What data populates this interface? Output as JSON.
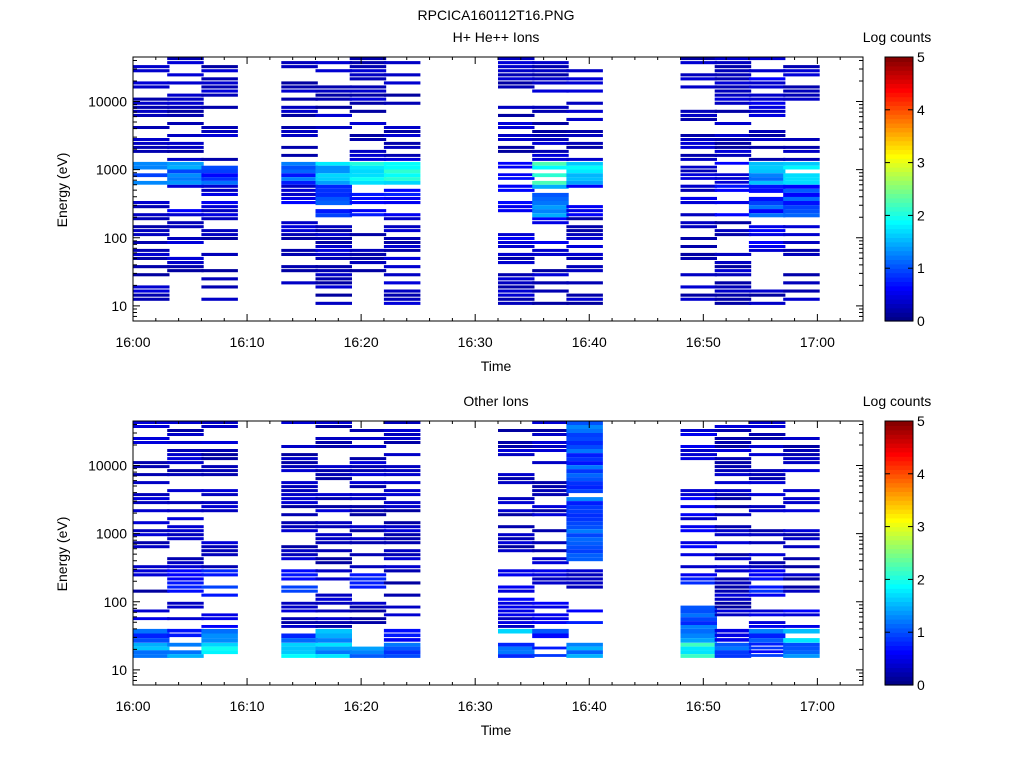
{
  "page_title": "RPCICA160112T16.PNG",
  "chart_data": [
    {
      "type": "heatmap",
      "title": "H+ He++ Ions",
      "xlabel": "Time",
      "ylabel": "Energy (eV)",
      "yscale": "log",
      "ylim": [
        6,
        45000
      ],
      "xlim_minutes": [
        0,
        64
      ],
      "x_tick_labels": [
        "16:00",
        "16:10",
        "16:20",
        "16:30",
        "16:40",
        "16:50",
        "17:00"
      ],
      "y_tick_labels": [
        "10",
        "100",
        "1000",
        "10000"
      ],
      "colorbar_label": "Log counts",
      "colorbar_ticks": [
        "0",
        "1",
        "2",
        "3",
        "4",
        "5"
      ],
      "colorbar_range": [
        0,
        5
      ],
      "time_columns": [
        "16:00",
        "16:03",
        "16:06",
        "16:13",
        "16:16",
        "16:19",
        "16:22",
        "16:32",
        "16:35",
        "16:38",
        "16:48",
        "16:51",
        "16:54",
        "16:57"
      ],
      "energy_bands": [
        {
          "range": "10-20 eV",
          "levels": [
            0.3,
            0,
            0.3,
            0,
            0.3,
            0,
            0.3,
            0.3,
            0.3,
            0.3,
            0.3,
            0.3,
            0.3,
            0.3
          ]
        },
        {
          "range": "20-60 eV",
          "levels": [
            0.3,
            0.3,
            0.3,
            0.3,
            0.3,
            0.3,
            0.3,
            0.3,
            0.3,
            0.3,
            0.3,
            0.3,
            0,
            0.3
          ]
        },
        {
          "range": "60-200 eV",
          "levels": [
            0.3,
            0.3,
            0.3,
            0.3,
            0.3,
            0.3,
            0.3,
            0.5,
            0.5,
            0.3,
            0.3,
            0.3,
            0.5,
            0.3
          ]
        },
        {
          "range": "200-600 eV",
          "levels": [
            0.4,
            0.5,
            0.4,
            0.5,
            0.9,
            0.6,
            0.7,
            0.6,
            1.2,
            0.5,
            0.4,
            0.6,
            0.9,
            0.9
          ]
        },
        {
          "range": "600-1300 eV",
          "levels": [
            1.0,
            1.2,
            0.9,
            1.0,
            1.6,
            1.8,
            1.9,
            0.6,
            2.0,
            1.6,
            0.4,
            0.5,
            1.4,
            1.6
          ]
        },
        {
          "range": "1300-5000 eV",
          "levels": [
            0.3,
            0.3,
            0.3,
            0.3,
            0.3,
            0.3,
            0.3,
            0.3,
            0.3,
            0.3,
            0.3,
            0.3,
            0.3,
            0.3
          ]
        },
        {
          "range": "5000-45000 eV",
          "levels": [
            0.3,
            0.3,
            0.3,
            0.3,
            0.3,
            0.3,
            0.3,
            0.3,
            0.3,
            0.3,
            0.3,
            0.3,
            0.5,
            0.3
          ]
        }
      ]
    },
    {
      "type": "heatmap",
      "title": "Other Ions",
      "xlabel": "Time",
      "ylabel": "Energy (eV)",
      "yscale": "log",
      "ylim": [
        6,
        45000
      ],
      "xlim_minutes": [
        0,
        64
      ],
      "x_tick_labels": [
        "16:00",
        "16:10",
        "16:20",
        "16:30",
        "16:40",
        "16:50",
        "17:00"
      ],
      "y_tick_labels": [
        "10",
        "100",
        "1000",
        "10000"
      ],
      "colorbar_label": "Log counts",
      "colorbar_ticks": [
        "0",
        "1",
        "2",
        "3",
        "4",
        "5"
      ],
      "colorbar_range": [
        0,
        5
      ],
      "time_columns": [
        "16:00",
        "16:03",
        "16:06",
        "16:13",
        "16:16",
        "16:19",
        "16:22",
        "16:32",
        "16:35",
        "16:38",
        "16:48",
        "16:51",
        "16:54",
        "16:57"
      ],
      "energy_bands": [
        {
          "range": "15-25 eV",
          "levels": [
            1.3,
            1.4,
            1.8,
            1.6,
            1.5,
            1.2,
            1.0,
            1.0,
            0.8,
            1.3,
            2.0,
            1.1,
            0.8,
            1.2
          ]
        },
        {
          "range": "25-40 eV",
          "levels": [
            1.0,
            0.6,
            1.2,
            1.0,
            1.5,
            0.8,
            0.6,
            1.5,
            0.9,
            0.8,
            1.4,
            0.5,
            1.0,
            1.6
          ]
        },
        {
          "range": "40-100 eV",
          "levels": [
            0.5,
            0.4,
            0.5,
            0.3,
            0.3,
            0.3,
            0.3,
            0.4,
            0.5,
            0.7,
            1.0,
            0.3,
            0.4,
            0.5
          ]
        },
        {
          "range": "100-300 eV",
          "levels": [
            0.3,
            0.7,
            0.8,
            0.8,
            0.4,
            0.7,
            0.3,
            0.5,
            0.4,
            0.3,
            0.7,
            0.3,
            0.7,
            0.3
          ]
        },
        {
          "range": "300-45000 eV",
          "levels": [
            0.3,
            0.3,
            0.3,
            0.3,
            0.3,
            0.3,
            0.3,
            0.3,
            0.3,
            1.0,
            0.5,
            0.3,
            0.3,
            0.3
          ]
        }
      ]
    }
  ]
}
